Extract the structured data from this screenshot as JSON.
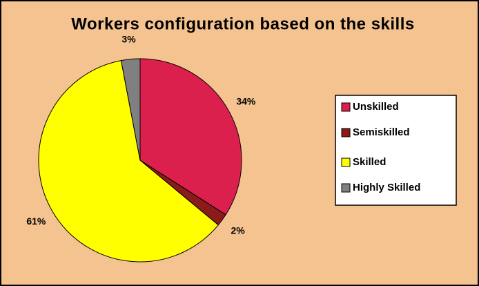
{
  "chart_data": {
    "type": "pie",
    "title": "Workers configuration based on the skills",
    "categories": [
      "Unskilled",
      "Semiskilled",
      "Skilled",
      "Highly Skilled"
    ],
    "values": [
      34,
      2,
      61,
      3
    ],
    "value_labels": [
      "34%",
      "2%",
      "61%",
      "3%"
    ],
    "colors": [
      "#dc204e",
      "#8b1a1a",
      "#ffff00",
      "#808080"
    ],
    "legend": "right"
  }
}
